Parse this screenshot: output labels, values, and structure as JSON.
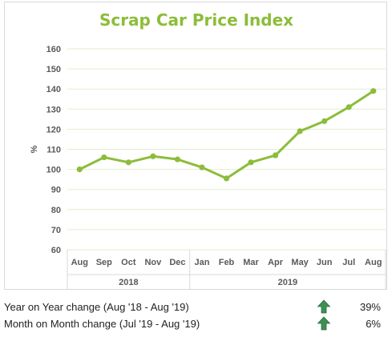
{
  "chart_data": {
    "type": "line",
    "title": "Scrap Car Price Index",
    "ylabel": "%",
    "xlabel": "",
    "ylim": [
      60,
      160
    ],
    "yticks": [
      60,
      70,
      80,
      90,
      100,
      110,
      120,
      130,
      140,
      150,
      160
    ],
    "grid": true,
    "categories": [
      "Aug",
      "Sep",
      "Oct",
      "Nov",
      "Dec",
      "Jan",
      "Feb",
      "Mar",
      "Apr",
      "May",
      "Jun",
      "Jul",
      "Aug"
    ],
    "groups": [
      {
        "label": "2018",
        "count": 5
      },
      {
        "label": "2019",
        "count": 8
      }
    ],
    "series": [
      {
        "values": [
          100,
          106,
          103.5,
          106.5,
          105,
          101,
          95.5,
          103.5,
          107,
          119,
          124,
          131,
          139
        ]
      }
    ]
  },
  "colors": {
    "series": "#8cbd3a",
    "title": "#8cbd3a",
    "grid": "#e2edcf",
    "arrow": "#3f8f55"
  },
  "stats": [
    {
      "label": "Year on Year change (Aug '18 - Aug '19)",
      "icon": "up-arrow-icon",
      "value": "39%"
    },
    {
      "label": "Month on Month change (Jul '19 - Aug '19)",
      "icon": "up-arrow-icon",
      "value": "6%"
    }
  ]
}
